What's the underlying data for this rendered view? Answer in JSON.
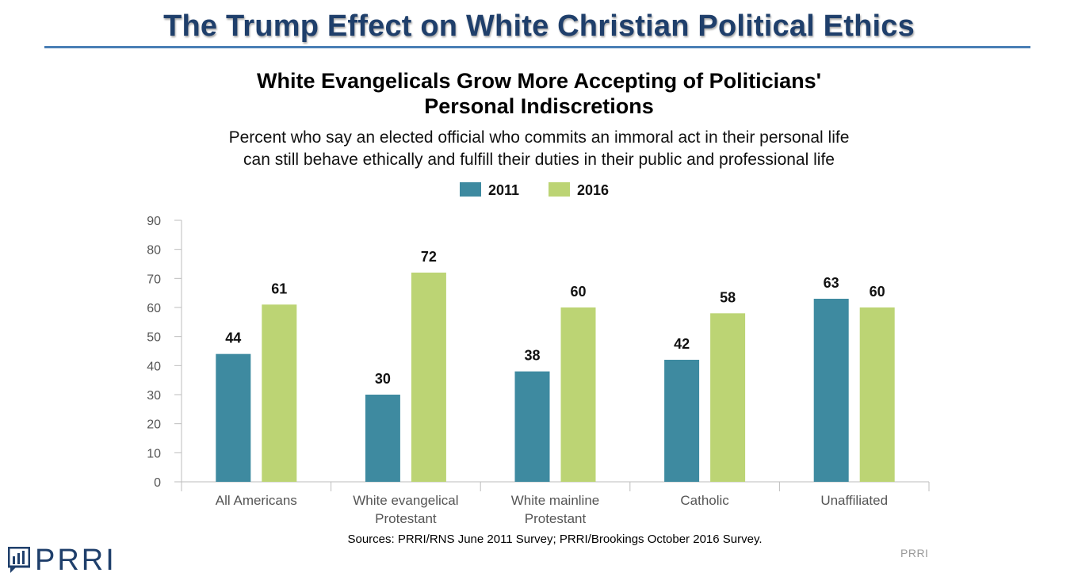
{
  "header": {
    "slide_title": "The Trump Effect on White Christian Political Ethics"
  },
  "chart_data": {
    "type": "bar",
    "title_lines": [
      "White Evangelicals Grow More Accepting of Politicians'",
      "Personal Indiscretions"
    ],
    "subtitle_lines": [
      "Percent who say an elected official who commits an immoral act in their personal life",
      "can still behave ethically and fulfill their duties in their public and professional life"
    ],
    "categories": [
      [
        "All Americans"
      ],
      [
        "White evangelical",
        "Protestant"
      ],
      [
        "White mainline",
        "Protestant"
      ],
      [
        "Catholic"
      ],
      [
        "Unaffiliated"
      ]
    ],
    "series": [
      {
        "name": "2011",
        "color": "#3e8aa0",
        "values": [
          44,
          30,
          38,
          42,
          63
        ]
      },
      {
        "name": "2016",
        "color": "#bcd474",
        "values": [
          61,
          72,
          60,
          58,
          60
        ]
      }
    ],
    "yticks": [
      "0",
      "10",
      "20",
      "30",
      "40",
      "50",
      "60",
      "70",
      "80",
      "90"
    ],
    "ylim": [
      0,
      90
    ],
    "grid": false,
    "legend_position": "top-center",
    "data_labels": true
  },
  "footer": {
    "source": "Sources: PRRI/RNS June 2011 Survey; PRRI/Brookings October 2016 Survey.",
    "watermark": "PRRI",
    "logo_text": "PRRI",
    "logo_color": "#1f3f6b"
  }
}
